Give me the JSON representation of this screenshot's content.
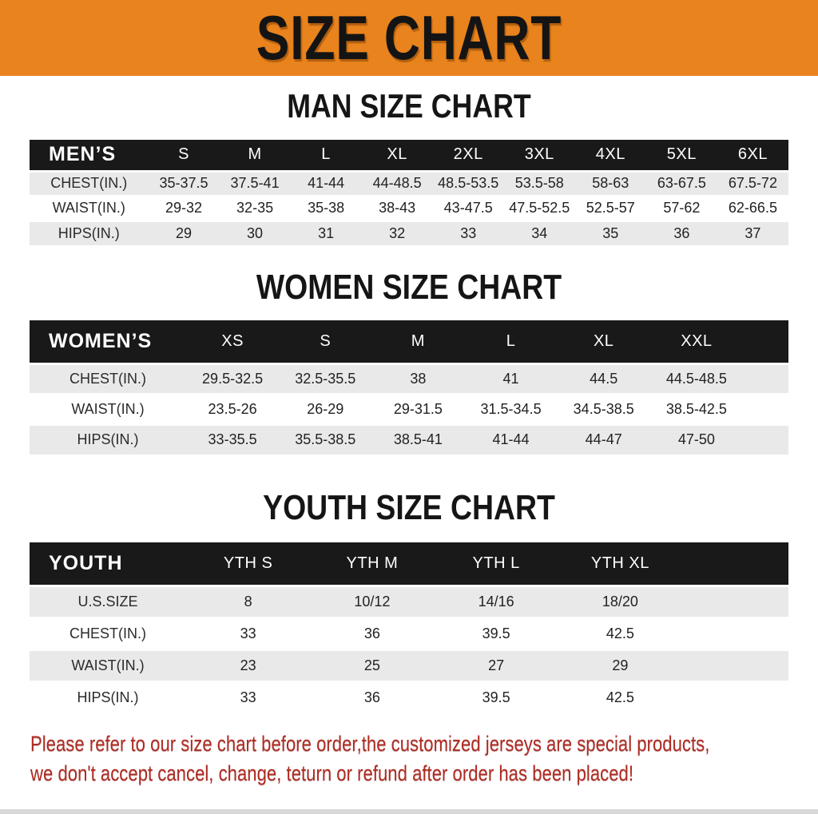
{
  "banner": {
    "title": "SIZE CHART"
  },
  "sections": [
    {
      "heading": "MAN SIZE CHART",
      "header_label": "MEN’S",
      "columns": [
        "S",
        "M",
        "L",
        "XL",
        "2XL",
        "3XL",
        "4XL",
        "5XL",
        "6XL"
      ],
      "rows": [
        {
          "label": "CHEST(IN.)",
          "values": [
            "35-37.5",
            "37.5-41",
            "41-44",
            "44-48.5",
            "48.5-53.5",
            "53.5-58",
            "58-63",
            "63-67.5",
            "67.5-72"
          ]
        },
        {
          "label": "WAIST(IN.)",
          "values": [
            "29-32",
            "32-35",
            "35-38",
            "38-43",
            "43-47.5",
            "47.5-52.5",
            "52.5-57",
            "57-62",
            "62-66.5"
          ]
        },
        {
          "label": "HIPS(IN.)",
          "values": [
            "29",
            "30",
            "31",
            "32",
            "33",
            "34",
            "35",
            "36",
            "37"
          ]
        }
      ]
    },
    {
      "heading": "WOMEN SIZE CHART",
      "header_label": "WOMEN’S",
      "columns": [
        "XS",
        "S",
        "M",
        "L",
        "XL",
        "XXL"
      ],
      "rows": [
        {
          "label": "CHEST(IN.)",
          "values": [
            "29.5-32.5",
            "32.5-35.5",
            "38",
            "41",
            "44.5",
            "44.5-48.5"
          ]
        },
        {
          "label": "WAIST(IN.)",
          "values": [
            "23.5-26",
            "26-29",
            "29-31.5",
            "31.5-34.5",
            "34.5-38.5",
            "38.5-42.5"
          ]
        },
        {
          "label": "HIPS(IN.)",
          "values": [
            "33-35.5",
            "35.5-38.5",
            "38.5-41",
            "41-44",
            "44-47",
            "47-50"
          ]
        }
      ]
    },
    {
      "heading": "YOUTH SIZE CHART",
      "header_label": "YOUTH",
      "columns": [
        "YTH S",
        "YTH M",
        "YTH L",
        "YTH XL"
      ],
      "rows": [
        {
          "label": "U.S.SIZE",
          "values": [
            "8",
            "10/12",
            "14/16",
            "18/20"
          ]
        },
        {
          "label": "CHEST(IN.)",
          "values": [
            "33",
            "36",
            "39.5",
            "42.5"
          ]
        },
        {
          "label": "WAIST(IN.)",
          "values": [
            "23",
            "25",
            "27",
            "29"
          ]
        },
        {
          "label": "HIPS(IN.)",
          "values": [
            "33",
            "36",
            "39.5",
            "42.5"
          ]
        }
      ]
    }
  ],
  "footer": {
    "line1": "Please refer to our size chart before order,the customized jerseys are special products,",
    "line2": "we don't accept cancel, change, teturn or refund after order has been placed!"
  },
  "colors": {
    "banner_bg": "#E8831D",
    "header_bar_bg": "#191919",
    "row_alt_bg": "#E9E9E9",
    "notice_text": "#AF2B22",
    "bottom_strip": "#D8D8D8"
  }
}
